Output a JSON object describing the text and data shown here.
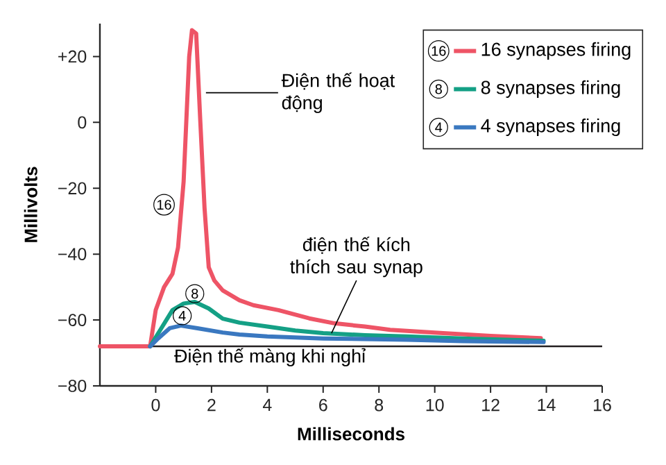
{
  "chart_data": {
    "type": "line",
    "xlabel": "Milliseconds",
    "ylabel": "Millivolts",
    "xlim": [
      -2,
      16
    ],
    "ylim": [
      -80,
      30
    ],
    "xticks": [
      0,
      2,
      4,
      6,
      8,
      10,
      12,
      14,
      16
    ],
    "yticks": [
      {
        "value": -80,
        "label": "−80"
      },
      {
        "value": -60,
        "label": "−60"
      },
      {
        "value": -40,
        "label": "−40"
      },
      {
        "value": -20,
        "label": "−20"
      },
      0,
      {
        "value": 20,
        "label": "+20"
      }
    ],
    "grid": false,
    "legend": "top right",
    "marker": "none",
    "line_style": "solid",
    "series": [
      {
        "name": "16 synapses firing",
        "color": "#ee5466",
        "x": [
          -2,
          -0.2,
          0,
          0.3,
          0.6,
          0.8,
          1.0,
          1.2,
          1.3,
          1.45,
          1.6,
          1.75,
          1.9,
          2.1,
          2.4,
          3,
          3.5,
          4.4,
          5.5,
          6.4,
          7.5,
          8.4,
          10.3,
          12,
          13.8
        ],
        "values": [
          -68,
          -68,
          -57,
          -50,
          -46,
          -38,
          -18,
          20,
          28,
          27,
          0,
          -26,
          -44,
          -48,
          -51,
          -54,
          -55.5,
          -57,
          -59.5,
          -61,
          -62,
          -63,
          -64,
          -64.8,
          -65.5
        ]
      },
      {
        "name": "8 synapses firing",
        "color": "#14a085",
        "x": [
          -0.2,
          0.2,
          0.6,
          1.0,
          1.4,
          1.9,
          2.4,
          3,
          4,
          5,
          6,
          7.5,
          9,
          11,
          13.9
        ],
        "values": [
          -68,
          -62.5,
          -57,
          -55,
          -54.5,
          -56.5,
          -59.6,
          -60.8,
          -62,
          -63.2,
          -64,
          -64.6,
          -65,
          -65.6,
          -66.3
        ]
      },
      {
        "name": "4 synapses firing",
        "color": "#3a78c0",
        "x": [
          -0.2,
          0.1,
          0.5,
          0.9,
          1.5,
          2.4,
          3,
          4,
          6,
          9,
          11,
          13.9
        ],
        "values": [
          -68,
          -65.5,
          -62.5,
          -61.7,
          -62.5,
          -63.8,
          -64.4,
          -65,
          -65.6,
          -66,
          -66.4,
          -66.7
        ]
      }
    ],
    "ref_lines": [
      {
        "axis": "y",
        "value": -68,
        "label": "Điện thế màng khi nghỉ",
        "color": "#231f20"
      }
    ],
    "annotations": [
      {
        "text": "Điện thế hoạt động",
        "x": 1.8,
        "y": 9
      },
      {
        "text": "điện thế kích thích sau synap",
        "x": 6.3,
        "y": -64
      },
      {
        "text": "16",
        "x": 0.3,
        "y": -25
      },
      {
        "text": "8",
        "x": 1.4,
        "y": -52
      },
      {
        "text": "4",
        "x": 0.95,
        "y": -58.7
      }
    ]
  }
}
